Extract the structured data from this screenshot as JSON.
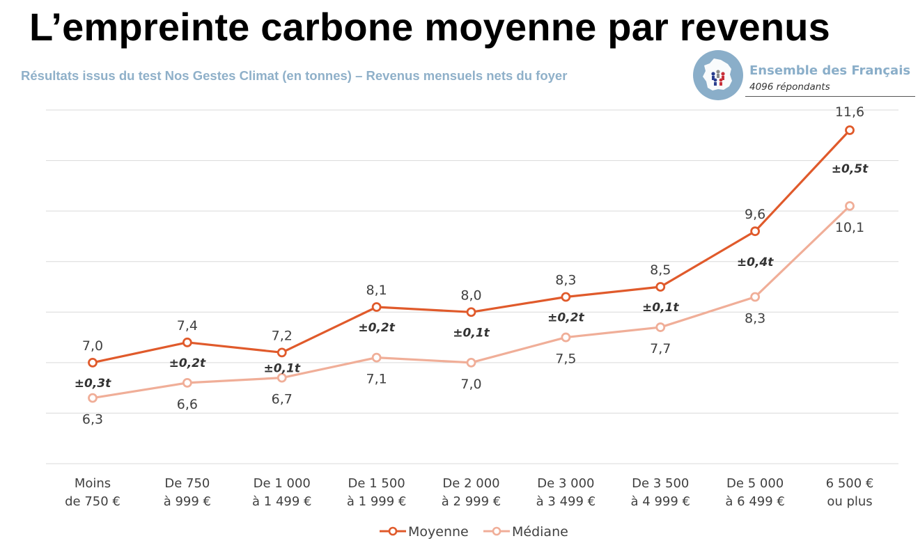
{
  "header": {
    "title": "L’empreinte carbone moyenne par revenus",
    "subtitle": "Résultats issus du test Nos Gestes Climat (en tonnes) – Revenus mensuels nets du foyer"
  },
  "badge": {
    "title": "Ensemble des Français",
    "respondents": "4096 répondants",
    "icon": "france-map-icon"
  },
  "colors": {
    "subtitle": "#8FB0C9",
    "badge_circle": "#8AAEC9",
    "moyenne": "#E05A2B",
    "mediane": "#F0AE98",
    "grid": "#D9D9D9",
    "label": "#404040"
  },
  "chart_data": {
    "type": "line",
    "categories": [
      [
        "Moins",
        "de 750 €"
      ],
      [
        "De 750",
        "à 999 €"
      ],
      [
        "De 1 000",
        "à 1 499 €"
      ],
      [
        "De 1 500",
        "à 1 999 €"
      ],
      [
        "De 2 000",
        "à 2 999 €"
      ],
      [
        "De 3 000",
        "à 3 499 €"
      ],
      [
        "De 3 500",
        "à 4 999 €"
      ],
      [
        "De 5 000",
        "à 6 499 €"
      ],
      [
        "6 500 €",
        "ou plus"
      ]
    ],
    "series": [
      {
        "name": "Moyenne",
        "values": [
          7.0,
          7.4,
          7.2,
          8.1,
          8.0,
          8.3,
          8.5,
          9.6,
          11.6
        ],
        "labels": [
          "7,0",
          "7,4",
          "7,2",
          "8,1",
          "8,0",
          "8,3",
          "8,5",
          "9,6",
          "11,6"
        ],
        "errors": [
          "±0,3t",
          "±0,2t",
          "±0,1t",
          "±0,2t",
          "±0,1t",
          "±0,2t",
          "±0,1t",
          "±0,4t",
          "±0,5t"
        ]
      },
      {
        "name": "Médiane",
        "values": [
          6.3,
          6.6,
          6.7,
          7.1,
          7.0,
          7.5,
          7.7,
          8.3,
          10.1
        ],
        "labels": [
          "6,3",
          "6,6",
          "6,7",
          "7,1",
          "7,0",
          "7,5",
          "7,7",
          "8,3",
          "10,1"
        ]
      }
    ],
    "ylim": [
      5,
      12
    ],
    "grid": true,
    "legend": "bottom-center",
    "xlabel": "",
    "ylabel": ""
  }
}
